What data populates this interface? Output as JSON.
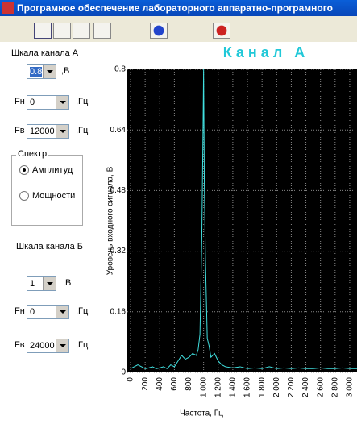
{
  "window": {
    "title": "Програмное обеспечение лабораторного аппаратно-програмного"
  },
  "channel_a": {
    "label": "Шкала канала А",
    "scale": {
      "value": "0.8",
      "unit": ",В"
    },
    "fn": {
      "label": "Fн",
      "value": "0",
      "unit": ",Гц"
    },
    "fv": {
      "label": "Fв",
      "value": "12000",
      "unit": ",Гц"
    }
  },
  "spectrum": {
    "title": "Спектр",
    "options": [
      "Амплитуд",
      "Мощности"
    ]
  },
  "channel_b": {
    "label": "Шкала канала Б",
    "scale": {
      "value": "1",
      "unit": ",В"
    },
    "fn": {
      "label": "Fн",
      "value": "0",
      "unit": ",Гц"
    },
    "fv": {
      "label": "Fв",
      "value": "24000",
      "unit": ",Гц"
    }
  },
  "chart_data": {
    "type": "line",
    "title": "Канал А",
    "y_label": "Уровень входного сигнала, В",
    "x_label": "Частота, Гц",
    "color": "#40e0e0",
    "x": [
      0,
      50,
      100,
      150,
      200,
      250,
      300,
      350,
      400,
      450,
      500,
      550,
      600,
      650,
      700,
      750,
      800,
      850,
      900,
      925,
      950,
      975,
      990,
      1000,
      1010,
      1025,
      1050,
      1075,
      1100,
      1150,
      1200,
      1250,
      1300,
      1400,
      1500,
      1600,
      1700,
      1800,
      1900,
      2000,
      2100,
      2200,
      2300,
      2400,
      2500,
      2600,
      2700,
      2800,
      2900,
      3000,
      3100
    ],
    "values": [
      0.01,
      0.015,
      0.02,
      0.015,
      0.01,
      0.012,
      0.015,
      0.01,
      0.012,
      0.015,
      0.01,
      0.02,
      0.015,
      0.03,
      0.045,
      0.035,
      0.04,
      0.05,
      0.045,
      0.06,
      0.1,
      0.35,
      0.6,
      0.8,
      0.5,
      0.3,
      0.09,
      0.07,
      0.04,
      0.05,
      0.03,
      0.02,
      0.015,
      0.012,
      0.015,
      0.01,
      0.012,
      0.01,
      0.015,
      0.01,
      0.012,
      0.01,
      0.012,
      0.01,
      0.01,
      0.012,
      0.01,
      0.01,
      0.012,
      0.01,
      0.01
    ],
    "xlim": [
      0,
      3100
    ],
    "ylim": [
      0,
      0.8
    ],
    "xticks": [
      0,
      200,
      400,
      600,
      800,
      {
        "value": 1000,
        "label": "1 000"
      },
      {
        "value": 1200,
        "label": "1 200"
      },
      {
        "value": 1400,
        "label": "1 400"
      },
      {
        "value": 1600,
        "label": "1 600"
      },
      {
        "value": 1800,
        "label": "1 800"
      },
      {
        "value": 2000,
        "label": "2 000"
      },
      {
        "value": 2200,
        "label": "2 200"
      },
      {
        "value": 2400,
        "label": "2 400"
      },
      {
        "value": 2600,
        "label": "2 600"
      },
      {
        "value": 2800,
        "label": "2 800"
      },
      {
        "value": 3000,
        "label": "3 000"
      }
    ],
    "yticks": [
      0,
      0.16,
      0.32,
      0.48,
      0.64,
      0.8
    ],
    "grid": true
  }
}
